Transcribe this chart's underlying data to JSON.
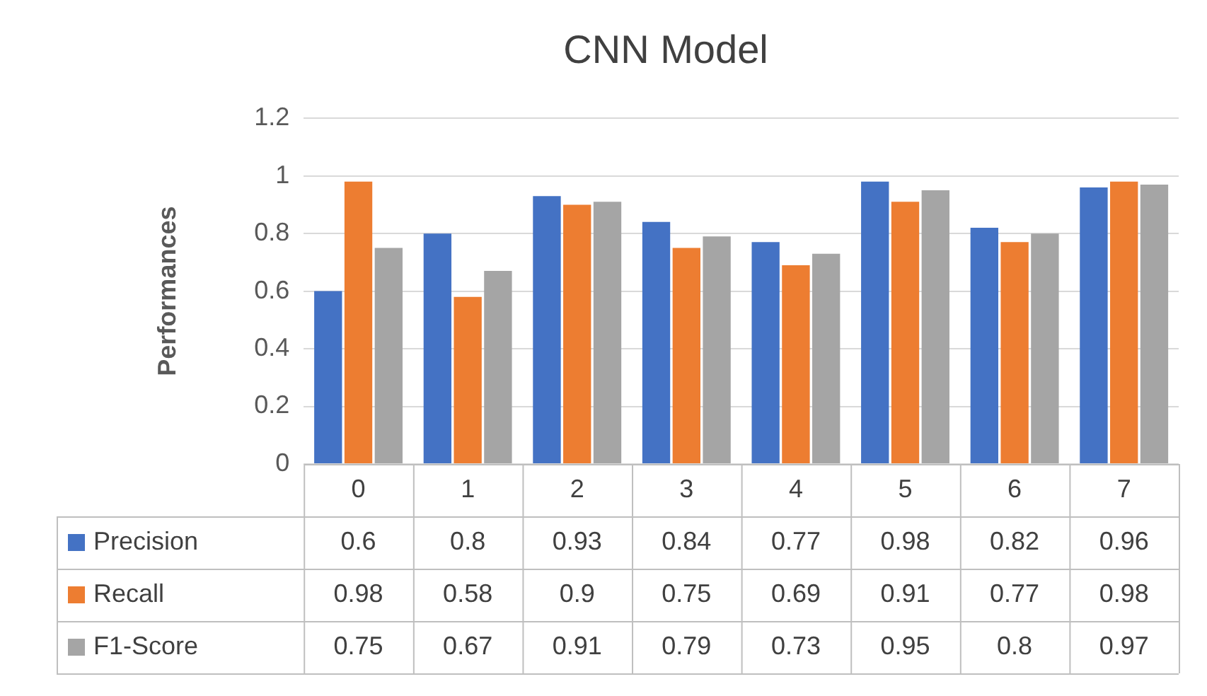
{
  "chart_data": {
    "type": "bar",
    "title": "CNN Model",
    "ylabel": "Performances",
    "categories": [
      "0",
      "1",
      "2",
      "3",
      "4",
      "5",
      "6",
      "7"
    ],
    "series": [
      {
        "name": "Precision",
        "color": "#4472c4",
        "values": [
          0.6,
          0.8,
          0.93,
          0.84,
          0.77,
          0.98,
          0.82,
          0.96
        ]
      },
      {
        "name": "Recall",
        "color": "#ed7d31",
        "values": [
          0.98,
          0.58,
          0.9,
          0.75,
          0.69,
          0.91,
          0.77,
          0.98
        ]
      },
      {
        "name": "F1-Score",
        "color": "#a5a5a5",
        "values": [
          0.75,
          0.67,
          0.91,
          0.79,
          0.73,
          0.95,
          0.8,
          0.97
        ]
      }
    ],
    "ylim": [
      0,
      1.2
    ],
    "yticks": [
      0,
      0.2,
      0.4,
      0.6,
      0.8,
      1,
      1.2
    ],
    "grid": "y",
    "legend": "bottom",
    "data_labels": true
  }
}
